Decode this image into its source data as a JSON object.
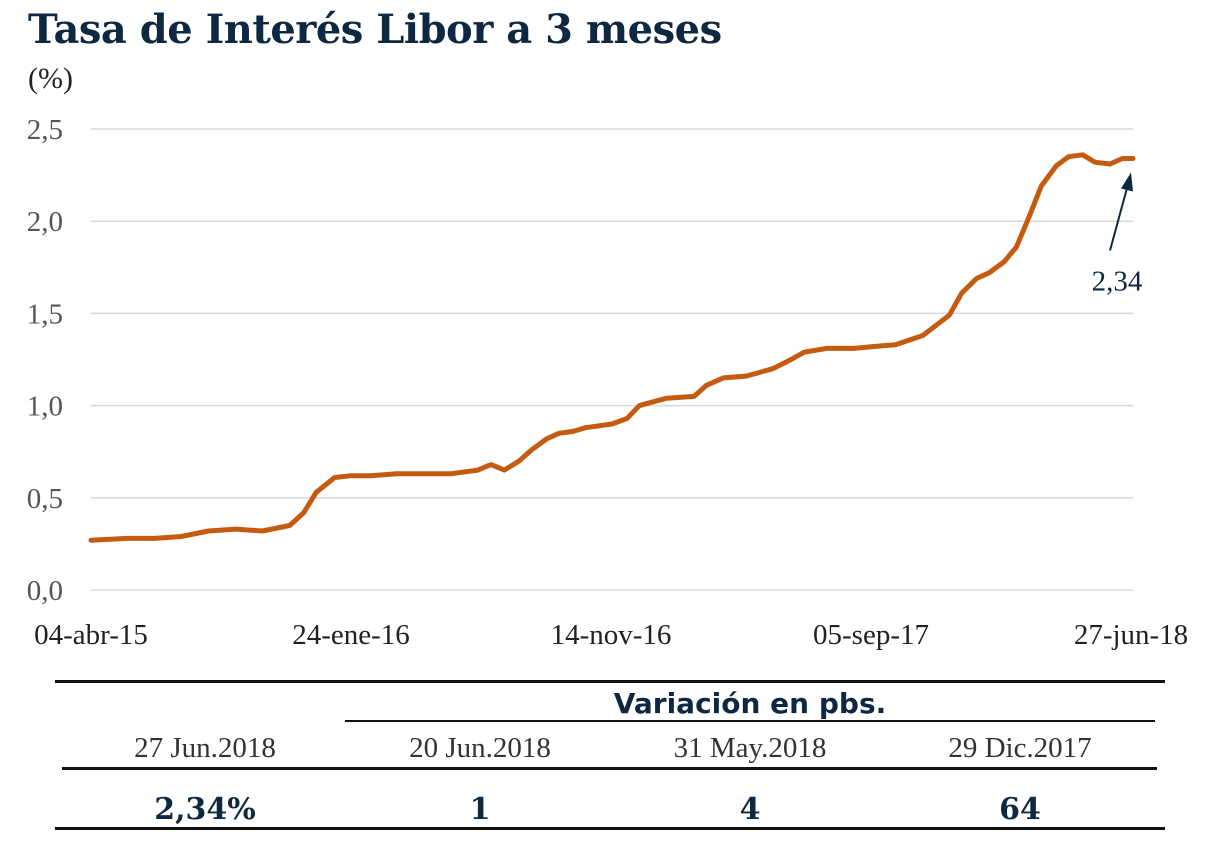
{
  "title": "Tasa de Interés Libor a 3 meses",
  "unit": "(%)",
  "colors": {
    "line": "#c55a11",
    "title": "#0e2841",
    "arrow": "#0e2841",
    "grid": "#d9d9d9"
  },
  "chart_data": {
    "type": "line",
    "title": "Tasa de Interés Libor a 3 meses",
    "ylabel": "(%)",
    "xlabel": "",
    "ylim": [
      0.0,
      2.5
    ],
    "yticks": [
      "0,0",
      "0,5",
      "1,0",
      "1,5",
      "2,0",
      "2,5"
    ],
    "xticks": [
      "04-abr-15",
      "24-ene-16",
      "14-nov-16",
      "05-sep-17",
      "27-jun-18"
    ],
    "grid": true,
    "series": [
      {
        "x": [
          "2015-04-04",
          "2015-05-15",
          "2015-06-15",
          "2015-07-15",
          "2015-08-15",
          "2015-09-15",
          "2015-10-15",
          "2015-11-15",
          "2015-12-01",
          "2015-12-15",
          "2016-01-05",
          "2016-01-24",
          "2016-02-15",
          "2016-03-15",
          "2016-04-15",
          "2016-05-15",
          "2016-06-15",
          "2016-06-30",
          "2016-07-15",
          "2016-08-01",
          "2016-08-15",
          "2016-09-01",
          "2016-09-15",
          "2016-10-01",
          "2016-10-15",
          "2016-11-14",
          "2016-12-01",
          "2016-12-15",
          "2017-01-15",
          "2017-02-15",
          "2017-03-01",
          "2017-03-20",
          "2017-04-15",
          "2017-05-15",
          "2017-06-01",
          "2017-06-20",
          "2017-07-15",
          "2017-08-15",
          "2017-09-05",
          "2017-10-01",
          "2017-11-01",
          "2017-12-01",
          "2017-12-15",
          "2018-01-01",
          "2018-01-15",
          "2018-02-01",
          "2018-02-15",
          "2018-03-01",
          "2018-03-15",
          "2018-04-01",
          "2018-04-15",
          "2018-05-01",
          "2018-05-15",
          "2018-06-01",
          "2018-06-15",
          "2018-06-27"
        ],
        "y": [
          0.27,
          0.28,
          0.28,
          0.29,
          0.32,
          0.33,
          0.32,
          0.35,
          0.42,
          0.53,
          0.61,
          0.62,
          0.62,
          0.63,
          0.63,
          0.63,
          0.65,
          0.68,
          0.65,
          0.7,
          0.76,
          0.82,
          0.85,
          0.86,
          0.88,
          0.9,
          0.93,
          1.0,
          1.04,
          1.05,
          1.11,
          1.15,
          1.16,
          1.2,
          1.24,
          1.29,
          1.31,
          1.31,
          1.32,
          1.33,
          1.38,
          1.49,
          1.61,
          1.69,
          1.72,
          1.78,
          1.86,
          2.02,
          2.19,
          2.3,
          2.35,
          2.36,
          2.32,
          2.31,
          2.34,
          2.34
        ]
      }
    ],
    "annotations": [
      {
        "text": "2,34"
      }
    ]
  },
  "table": {
    "group_header": "Variación en pbs.",
    "columns": [
      "27 Jun.2018",
      "20 Jun.2018",
      "31 May.2018",
      "29 Dic.2017"
    ],
    "values": [
      "2,34%",
      "1",
      "4",
      "64"
    ]
  }
}
